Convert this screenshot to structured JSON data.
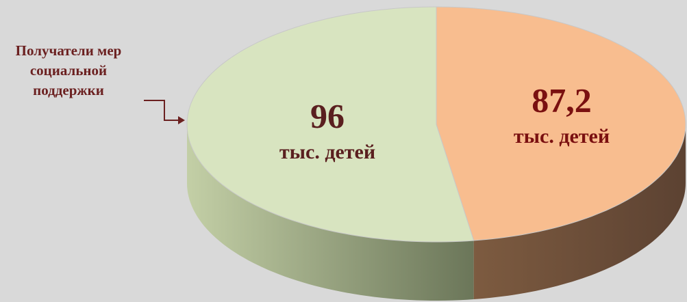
{
  "chart_data": {
    "type": "pie3d",
    "annotation": "Получатели мер социальной поддержки",
    "values": [
      96,
      87.2
    ],
    "value_labels": [
      "96",
      "87,2"
    ],
    "unit_label": "тыс. детей",
    "colors": [
      "#d8e4c0",
      "#f8bd8f"
    ],
    "label_colors": [
      "#5a1f1f",
      "#7a1010"
    ]
  }
}
